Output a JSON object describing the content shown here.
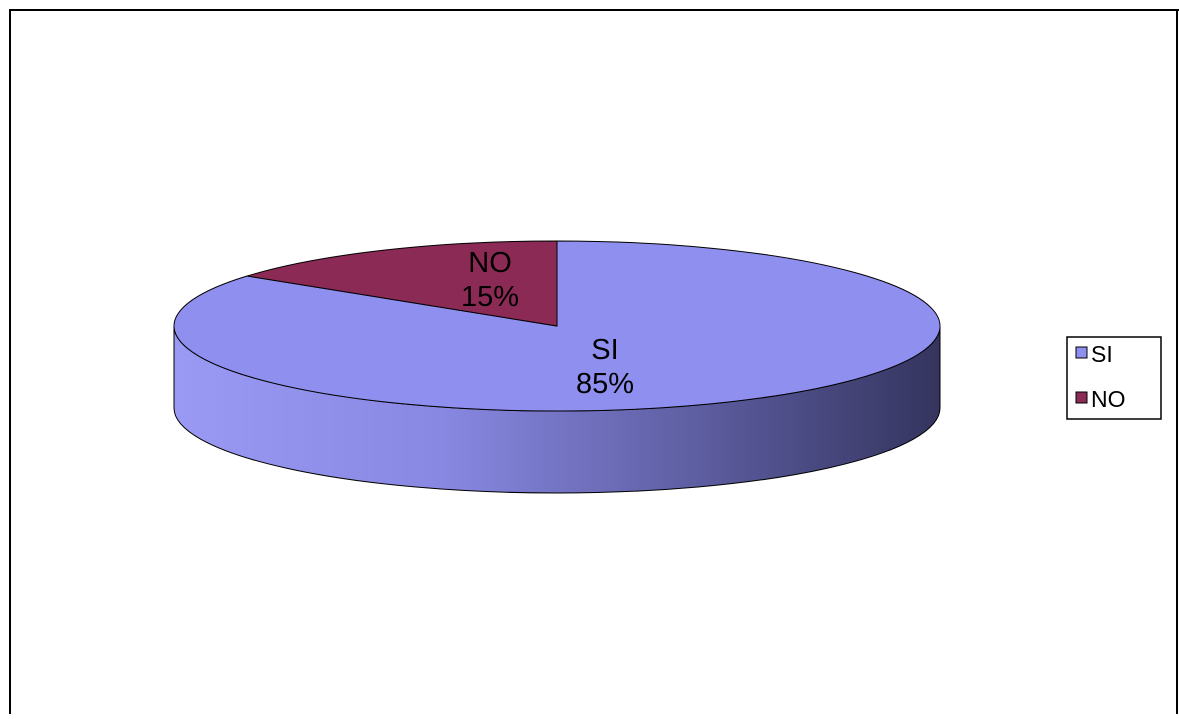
{
  "chart_data": {
    "type": "pie",
    "style": "3d",
    "categories": [
      "SI",
      "NO"
    ],
    "values": [
      85,
      15
    ],
    "data_labels": [
      {
        "name": "SI",
        "percent": "85%"
      },
      {
        "name": "NO",
        "percent": "15%"
      }
    ],
    "colors": [
      "#8f8fef",
      "#8b2b55"
    ],
    "legend": {
      "position": "right",
      "entries": [
        "SI",
        "NO"
      ]
    },
    "title": "",
    "xlabel": "",
    "ylabel": "",
    "grid": false
  }
}
